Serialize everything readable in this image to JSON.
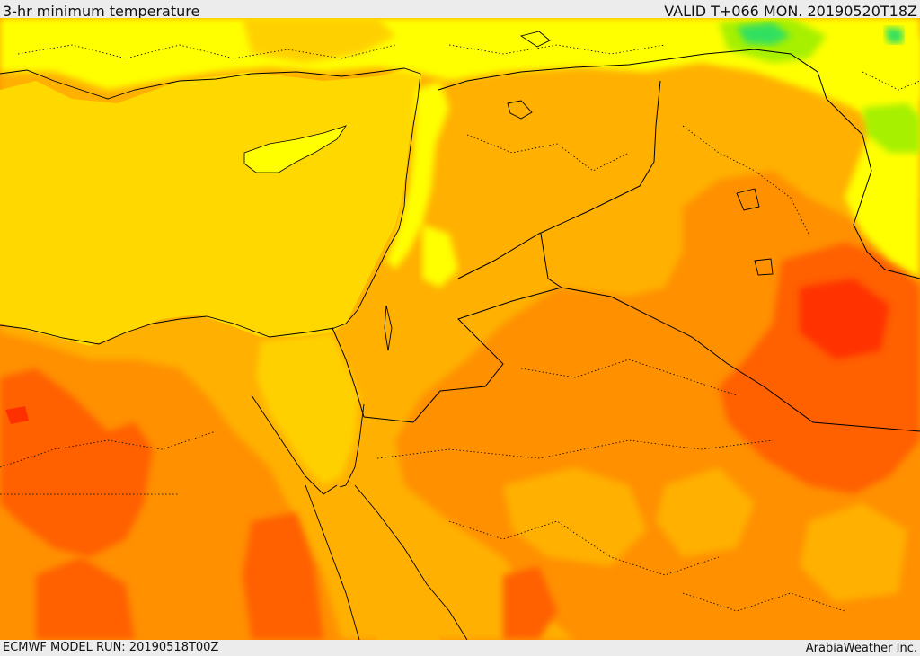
{
  "header": {
    "title": "3-hr minimum temperature",
    "valid": "VALID T+066 MON. 20190520T18Z"
  },
  "footer": {
    "model_run": "ECMWF MODEL RUN: 20190518T00Z",
    "credit": "ArabiaWeather Inc."
  },
  "map": {
    "colors": {
      "sea": "#ffd800",
      "band_yellow": "#ffff00",
      "band_gold": "#ffd000",
      "band_amber": "#ffb000",
      "band_orange": "#ff9000",
      "band_dark_orange": "#ff6000",
      "band_red": "#ff3000",
      "band_green_light": "#a6f000",
      "band_green": "#30e060",
      "border": "#000000"
    }
  }
}
